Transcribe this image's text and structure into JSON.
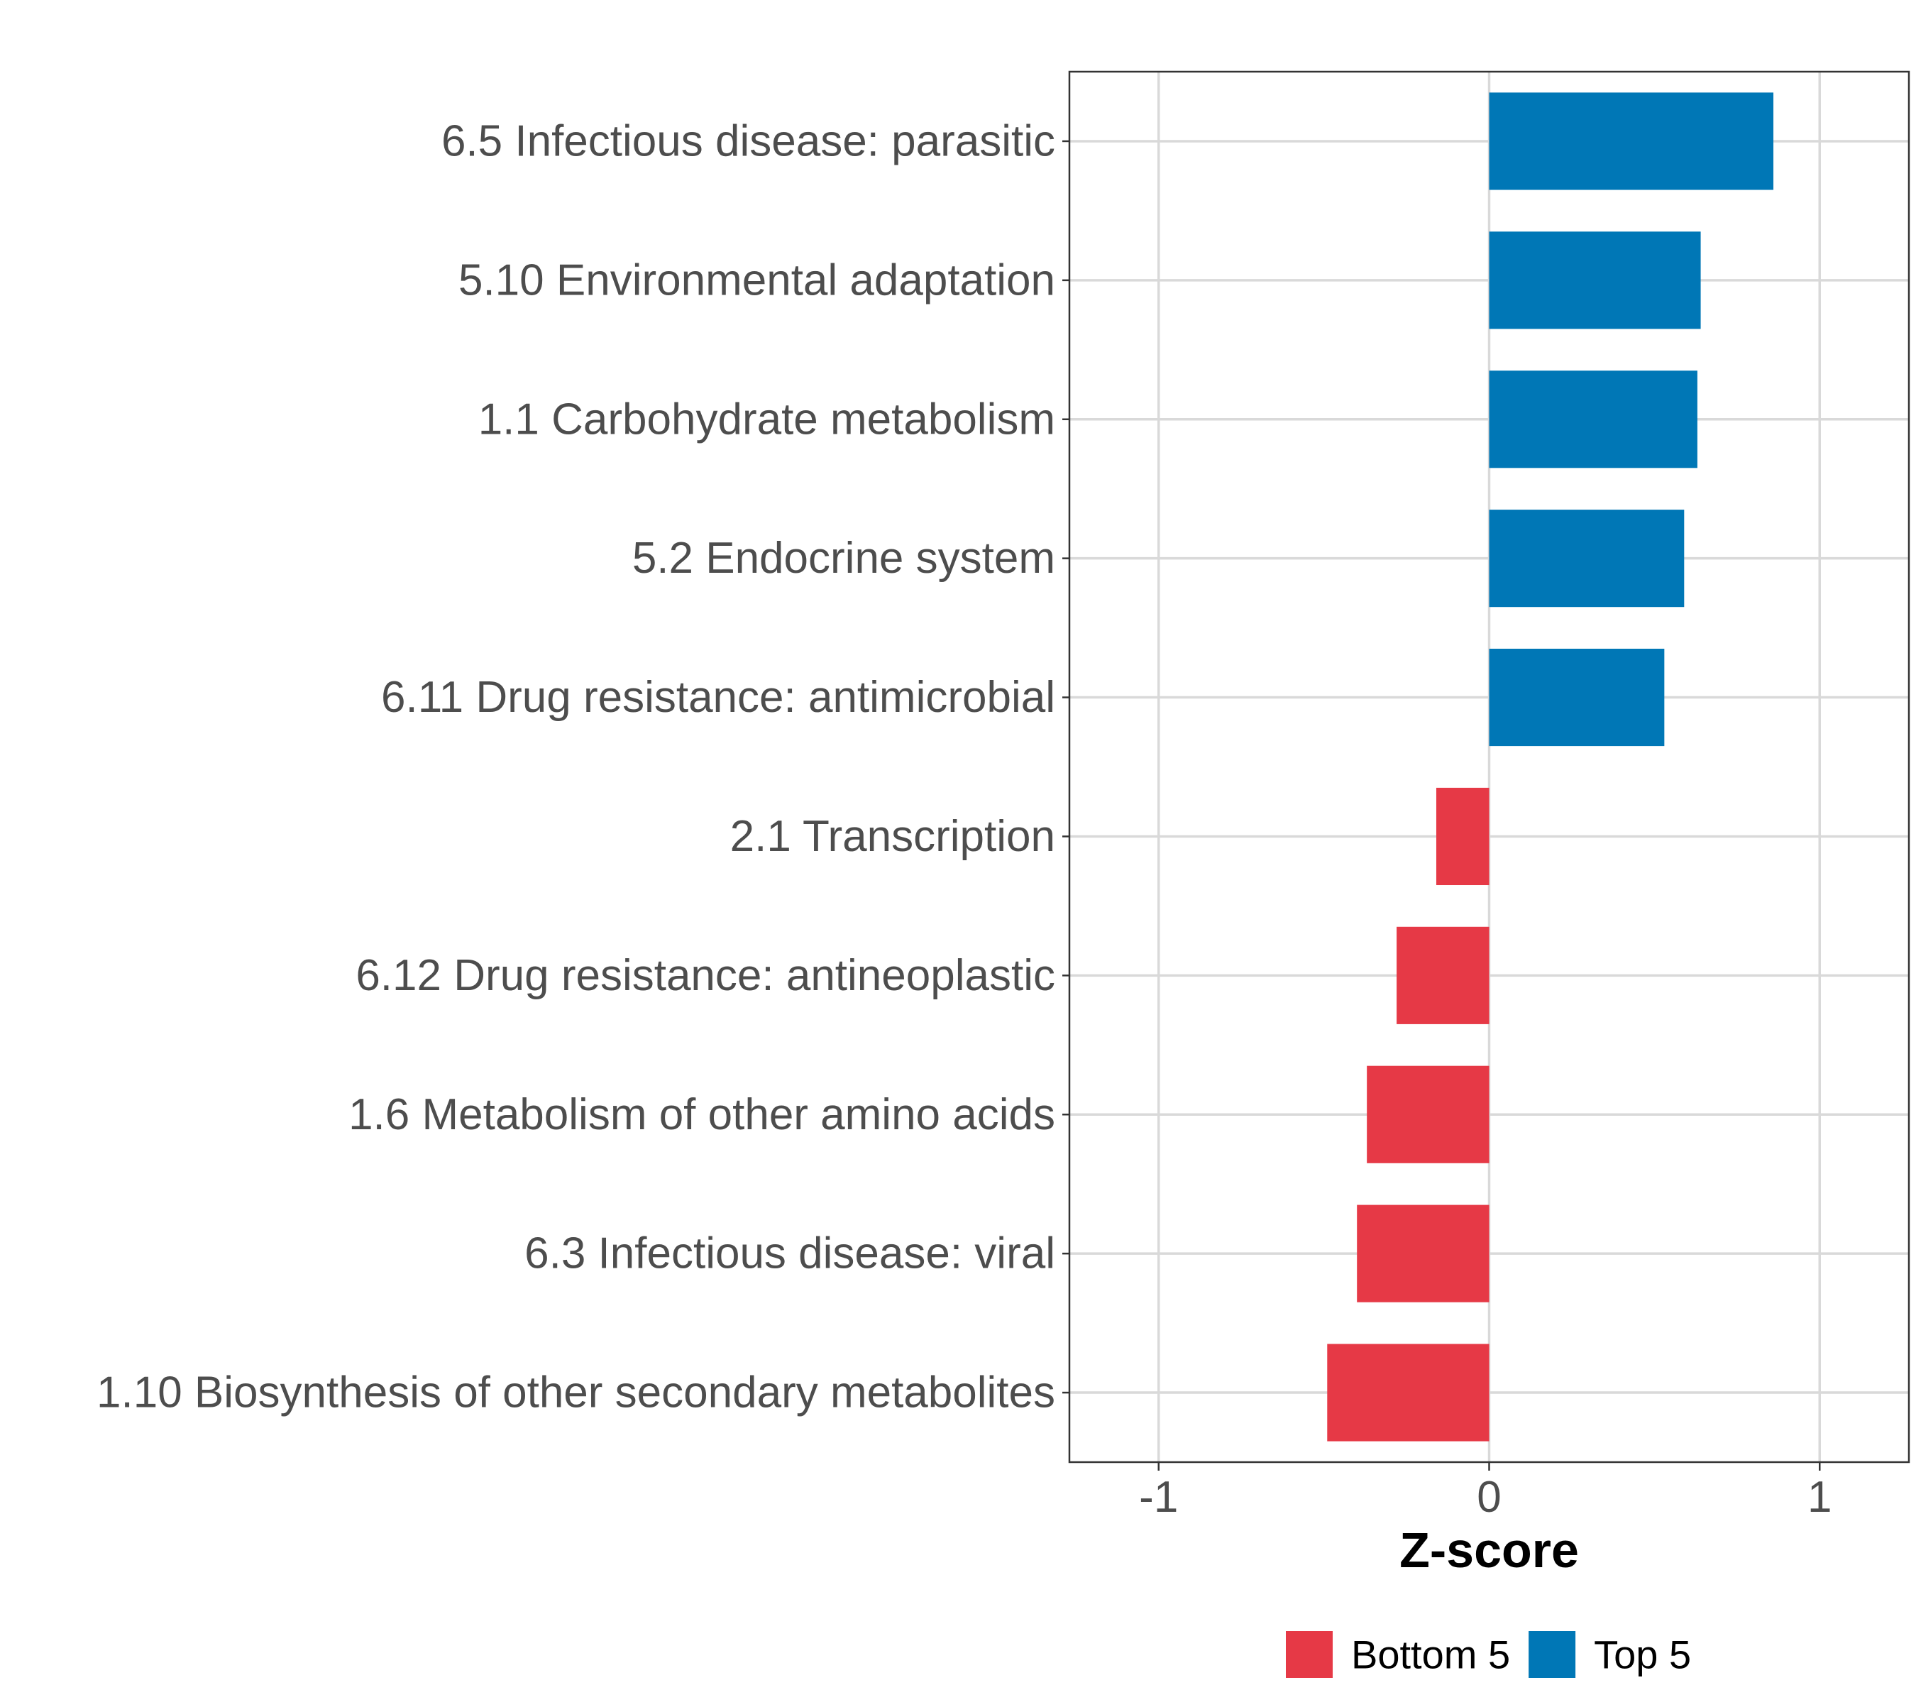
{
  "chart_data": {
    "type": "bar",
    "orientation": "horizontal",
    "title": "",
    "xlabel": "Z-score",
    "ylabel": "",
    "xlim": [
      -1.27,
      1.27
    ],
    "xticks": [
      -1,
      0,
      1
    ],
    "xtick_labels": [
      "-1",
      "0",
      "1"
    ],
    "grid": true,
    "legend_position": "bottom",
    "categories": [
      "6.5 Infectious disease: parasitic",
      "5.10 Environmental adaptation",
      "1.1 Carbohydrate metabolism",
      "5.2 Endocrine system",
      "6.11 Drug resistance: antimicrobial",
      "2.1 Transcription",
      "6.12 Drug resistance: antineoplastic",
      "1.6 Metabolism of other amino acids",
      "6.3 Infectious disease: viral",
      "1.10 Biosynthesis of other secondary metabolites"
    ],
    "values": [
      0.86,
      0.64,
      0.63,
      0.59,
      0.53,
      -0.16,
      -0.28,
      -0.37,
      -0.4,
      -0.49
    ],
    "groups": [
      "Top 5",
      "Top 5",
      "Top 5",
      "Top 5",
      "Top 5",
      "Bottom 5",
      "Bottom 5",
      "Bottom 5",
      "Bottom 5",
      "Bottom 5"
    ],
    "legend": [
      {
        "label": "Bottom 5",
        "color": "#E63946"
      },
      {
        "label": "Top 5",
        "color": "#0077B6"
      }
    ]
  },
  "colors": {
    "top": "#0077B6",
    "bottom": "#E63946",
    "grid": "#D9D9D9",
    "axis_text": "#4D4D4D",
    "frame": "#333333"
  }
}
